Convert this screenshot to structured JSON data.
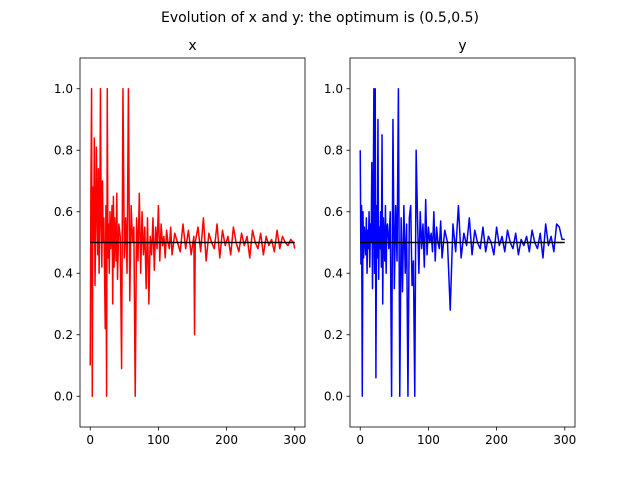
{
  "figure": {
    "suptitle": "Evolution of x and y: the optimum is (0.5,0.5)"
  },
  "chart_data": [
    {
      "type": "line",
      "title": "x",
      "xlabel": "",
      "ylabel": "",
      "xlim": [
        -15,
        315
      ],
      "ylim": [
        -0.1,
        1.1
      ],
      "xticks": [
        0,
        100,
        200,
        300
      ],
      "yticks": [
        0.0,
        0.2,
        0.4,
        0.6,
        0.8,
        1.0
      ],
      "xtick_labels": [
        "0",
        "100",
        "200",
        "300"
      ],
      "ytick_labels": [
        "0.0",
        "0.2",
        "0.4",
        "0.6",
        "0.8",
        "1.0"
      ],
      "grid": false,
      "series": [
        {
          "color": "#ff0000",
          "x": [
            0,
            1,
            2,
            3,
            4,
            5,
            6,
            7,
            8,
            9,
            10,
            11,
            12,
            13,
            14,
            15,
            16,
            17,
            18,
            19,
            20,
            21,
            22,
            23,
            24,
            25,
            26,
            27,
            28,
            29,
            30,
            31,
            32,
            33,
            34,
            35,
            36,
            37,
            38,
            39,
            40,
            42,
            44,
            46,
            48,
            50,
            52,
            54,
            56,
            58,
            60,
            62,
            64,
            66,
            68,
            70,
            72,
            74,
            76,
            78,
            80,
            82,
            84,
            86,
            88,
            90,
            92,
            94,
            96,
            98,
            100,
            102,
            104,
            106,
            108,
            110,
            112,
            114,
            116,
            118,
            120,
            124,
            128,
            132,
            136,
            140,
            144,
            148,
            152,
            153,
            154,
            158,
            162,
            166,
            170,
            174,
            178,
            182,
            186,
            190,
            194,
            198,
            202,
            206,
            210,
            214,
            218,
            222,
            226,
            230,
            234,
            238,
            242,
            246,
            250,
            254,
            258,
            262,
            266,
            270,
            274,
            278,
            282,
            286,
            290,
            294,
            298,
            300
          ],
          "y": [
            0.1,
            0.68,
            1.0,
            0.0,
            0.68,
            0.5,
            0.84,
            0.36,
            0.52,
            0.81,
            0.62,
            0.46,
            0.74,
            0.4,
            0.55,
            1.0,
            0.6,
            0.42,
            0.7,
            0.5,
            0.58,
            0.4,
            0.22,
            0.62,
            0.0,
            1.0,
            0.45,
            0.56,
            0.4,
            0.6,
            0.48,
            0.55,
            0.62,
            0.3,
            0.65,
            0.42,
            0.58,
            0.5,
            0.44,
            0.66,
            0.38,
            0.56,
            0.52,
            0.09,
            1.0,
            0.45,
            0.58,
            0.4,
            1.0,
            0.31,
            0.62,
            0.5,
            0.55,
            0.0,
            0.58,
            0.44,
            0.66,
            0.4,
            0.6,
            0.46,
            0.55,
            0.35,
            0.58,
            0.3,
            0.52,
            0.46,
            0.58,
            0.41,
            0.55,
            0.48,
            0.62,
            0.44,
            0.56,
            0.49,
            0.52,
            0.45,
            0.54,
            0.5,
            0.48,
            0.55,
            0.46,
            0.53,
            0.5,
            0.47,
            0.56,
            0.48,
            0.54,
            0.46,
            0.52,
            0.2,
            0.5,
            0.55,
            0.47,
            0.58,
            0.44,
            0.53,
            0.5,
            0.48,
            0.56,
            0.45,
            0.54,
            0.49,
            0.52,
            0.46,
            0.55,
            0.5,
            0.47,
            0.53,
            0.49,
            0.52,
            0.45,
            0.54,
            0.5,
            0.48,
            0.53,
            0.46,
            0.52,
            0.49,
            0.51,
            0.47,
            0.54,
            0.48,
            0.52,
            0.5,
            0.49,
            0.51,
            0.5,
            0.48
          ]
        },
        {
          "color": "#000000",
          "x": [
            0,
            300
          ],
          "y": [
            0.5,
            0.5
          ]
        }
      ]
    },
    {
      "type": "line",
      "title": "y",
      "xlabel": "",
      "ylabel": "",
      "xlim": [
        -15,
        315
      ],
      "ylim": [
        -0.1,
        1.1
      ],
      "xticks": [
        0,
        100,
        200,
        300
      ],
      "yticks": [
        0.0,
        0.2,
        0.4,
        0.6,
        0.8,
        1.0
      ],
      "xtick_labels": [
        "0",
        "100",
        "200",
        "300"
      ],
      "ytick_labels": [
        "0.0",
        "0.2",
        "0.4",
        "0.6",
        "0.8",
        "1.0"
      ],
      "grid": false,
      "series": [
        {
          "color": "#0000ff",
          "x": [
            0,
            1,
            2,
            3,
            4,
            5,
            6,
            7,
            8,
            9,
            10,
            11,
            12,
            13,
            14,
            15,
            16,
            17,
            18,
            19,
            20,
            21,
            22,
            23,
            24,
            25,
            26,
            27,
            28,
            29,
            30,
            31,
            32,
            33,
            34,
            35,
            36,
            37,
            38,
            39,
            40,
            42,
            44,
            46,
            48,
            50,
            52,
            54,
            56,
            58,
            60,
            62,
            64,
            66,
            68,
            70,
            72,
            74,
            76,
            78,
            80,
            82,
            84,
            86,
            88,
            90,
            92,
            94,
            96,
            98,
            100,
            102,
            104,
            106,
            108,
            110,
            112,
            114,
            116,
            118,
            120,
            124,
            128,
            132,
            136,
            140,
            144,
            148,
            152,
            156,
            160,
            164,
            168,
            172,
            176,
            180,
            184,
            188,
            192,
            196,
            200,
            204,
            208,
            212,
            216,
            220,
            224,
            228,
            232,
            236,
            240,
            244,
            248,
            252,
            256,
            260,
            264,
            268,
            272,
            276,
            280,
            284,
            288,
            292,
            296,
            300
          ],
          "y": [
            0.8,
            0.43,
            0.62,
            0.0,
            0.6,
            0.45,
            0.55,
            0.52,
            0.46,
            0.58,
            0.4,
            0.54,
            0.48,
            0.6,
            0.42,
            0.56,
            0.5,
            0.76,
            0.35,
            0.58,
            1.0,
            0.4,
            1.0,
            0.06,
            0.62,
            0.45,
            0.9,
            0.38,
            0.55,
            0.48,
            0.6,
            0.42,
            0.85,
            0.3,
            0.58,
            0.5,
            0.44,
            0.62,
            0.4,
            0.55,
            0.56,
            0.48,
            0.6,
            0.0,
            0.9,
            0.35,
            0.62,
            0.44,
            1.0,
            0.0,
            0.58,
            0.34,
            0.62,
            0.4,
            0.56,
            0.0,
            0.58,
            0.62,
            0.36,
            0.44,
            0.0,
            0.8,
            0.58,
            0.4,
            0.6,
            0.48,
            0.56,
            0.42,
            0.64,
            0.46,
            0.55,
            0.5,
            0.53,
            0.47,
            0.6,
            0.44,
            0.55,
            0.5,
            0.48,
            0.57,
            0.45,
            0.54,
            0.5,
            0.28,
            0.56,
            0.47,
            0.62,
            0.45,
            0.53,
            0.49,
            0.58,
            0.46,
            0.54,
            0.5,
            0.48,
            0.55,
            0.47,
            0.52,
            0.5,
            0.46,
            0.55,
            0.49,
            0.52,
            0.47,
            0.54,
            0.5,
            0.48,
            0.53,
            0.46,
            0.51,
            0.49,
            0.52,
            0.47,
            0.54,
            0.5,
            0.48,
            0.53,
            0.45,
            0.56,
            0.49,
            0.52,
            0.47,
            0.56,
            0.55,
            0.51,
            0.51
          ]
        },
        {
          "color": "#000000",
          "x": [
            0,
            300
          ],
          "y": [
            0.5,
            0.5
          ]
        }
      ]
    }
  ]
}
